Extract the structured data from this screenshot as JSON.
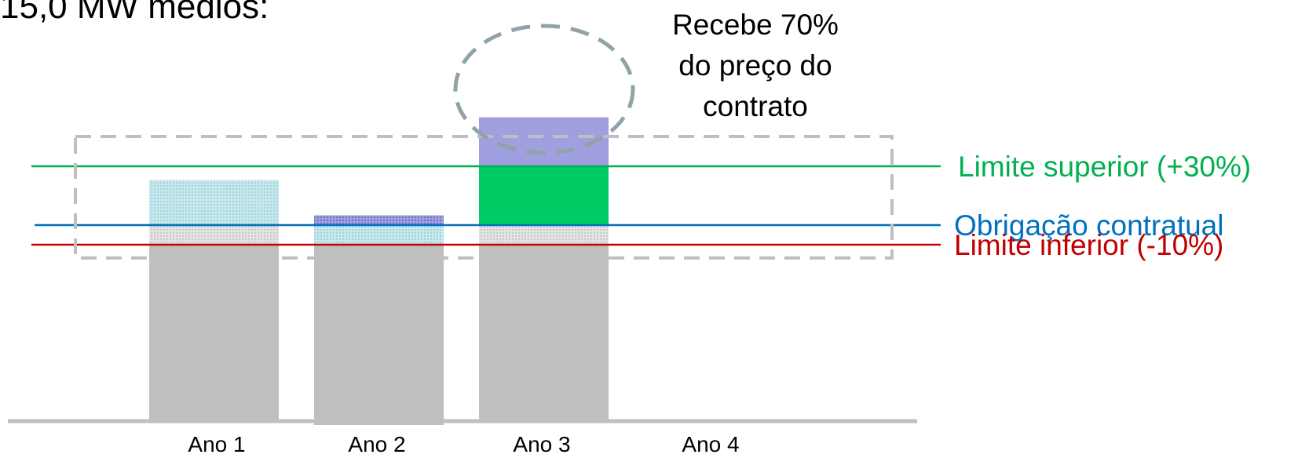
{
  "page": {
    "title_fragment": "15,0 MW médios:",
    "annotation_lines": [
      "Recebe 70%",
      "do preço do",
      "contrato"
    ]
  },
  "chart_data": {
    "type": "bar",
    "categories": [
      "Ano 1",
      "Ano 2",
      "Ano 3",
      "Ano 4"
    ],
    "unit_note": "values relative to contractual obligation (obligation = 1.0)",
    "reference_lines": [
      {
        "key": "upper",
        "label": "Limite superior (+30%)",
        "value": 1.3,
        "color": "#00b050"
      },
      {
        "key": "obligation",
        "label": "Obrigação contratual",
        "value": 1.0,
        "color": "#0070c0"
      },
      {
        "key": "lower",
        "label": "Limite inferior (-10%)",
        "value": 0.9,
        "color": "#c00000"
      }
    ],
    "bars": [
      {
        "category": "Ano 1",
        "segments": [
          {
            "kind": "base",
            "from": 0,
            "to": 0.9,
            "color": "#bfbfbf"
          },
          {
            "kind": "band-hatched-gray",
            "from": 0.9,
            "to": 1.0,
            "color": "#d9d9d9"
          },
          {
            "kind": "excess-hatched-cyan",
            "from": 1.0,
            "to": 1.23,
            "color": "#b7dee8"
          }
        ]
      },
      {
        "category": "Ano 2",
        "segments": [
          {
            "kind": "base",
            "from": -0.02,
            "to": 0.9,
            "color": "#bfbfbf"
          },
          {
            "kind": "band-hatched-cyan",
            "from": 0.9,
            "to": 1.0,
            "color": "#b7dee8"
          },
          {
            "kind": "deficit-hatched-purple",
            "from": 1.0,
            "to": 1.05,
            "color": "#8d8dd6"
          }
        ]
      },
      {
        "category": "Ano 3",
        "segments": [
          {
            "kind": "base",
            "from": 0,
            "to": 0.9,
            "color": "#bfbfbf"
          },
          {
            "kind": "band-hatched-gray",
            "from": 0.9,
            "to": 1.0,
            "color": "#d9d9d9"
          },
          {
            "kind": "excess-green",
            "from": 1.0,
            "to": 1.3,
            "color": "#00cc66"
          },
          {
            "kind": "above-limit-purple",
            "from": 1.3,
            "to": 1.55,
            "color": "#a09fdf"
          }
        ]
      },
      {
        "category": "Ano 4",
        "segments": []
      }
    ],
    "ylim": [
      -0.02,
      1.6
    ],
    "title": "",
    "xlabel": "",
    "ylabel": ""
  }
}
